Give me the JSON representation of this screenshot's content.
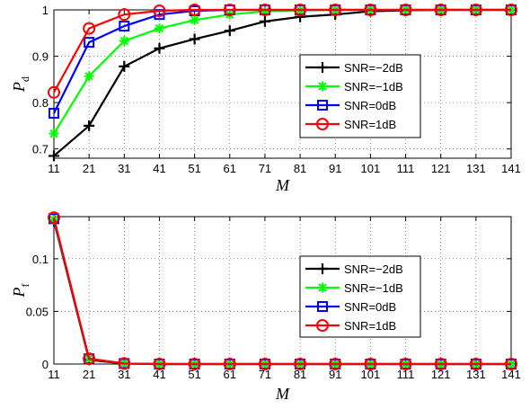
{
  "chart_data": [
    {
      "type": "line",
      "xlabel": "M",
      "ylabel": "P",
      "ylabel_sub": "d",
      "x": [
        11,
        21,
        31,
        41,
        51,
        61,
        71,
        81,
        91,
        101,
        111,
        121,
        131,
        141
      ],
      "xlim": [
        11,
        141
      ],
      "ylim": [
        0.68,
        1.0
      ],
      "yticks": [
        0.7,
        0.8,
        0.9,
        1.0
      ],
      "ytick_labels": [
        "0.7",
        "0.8",
        "0.9",
        "1"
      ],
      "grid": true,
      "legend_position": "right",
      "series": [
        {
          "name": "SNR=−2dB",
          "color": "#000000",
          "marker": "plus",
          "values": [
            0.685,
            0.75,
            0.878,
            0.917,
            0.937,
            0.955,
            0.975,
            0.985,
            0.99,
            0.997,
            0.999,
            1.0,
            1.0,
            1.0
          ]
        },
        {
          "name": "SNR=−1dB",
          "color": "#00ff00",
          "marker": "star",
          "values": [
            0.733,
            0.857,
            0.933,
            0.96,
            0.978,
            0.99,
            0.997,
            0.999,
            1.0,
            1.0,
            1.0,
            1.0,
            1.0,
            1.0
          ]
        },
        {
          "name": "SNR=0dB",
          "color": "#0000ff",
          "marker": "square",
          "values": [
            0.777,
            0.93,
            0.965,
            0.99,
            0.998,
            1.0,
            1.0,
            1.0,
            1.0,
            1.0,
            1.0,
            1.0,
            1.0,
            1.0
          ]
        },
        {
          "name": "SNR=1dB",
          "color": "#ff0000",
          "marker": "circle",
          "values": [
            0.822,
            0.96,
            0.99,
            0.998,
            1.0,
            1.0,
            1.0,
            1.0,
            1.0,
            1.0,
            1.0,
            1.0,
            1.0,
            1.0
          ]
        }
      ]
    },
    {
      "type": "line",
      "xlabel": "M",
      "ylabel": "P",
      "ylabel_sub": "f",
      "x": [
        11,
        21,
        31,
        41,
        51,
        61,
        71,
        81,
        91,
        101,
        111,
        121,
        131,
        141
      ],
      "xlim": [
        11,
        141
      ],
      "ylim": [
        0,
        0.14
      ],
      "yticks": [
        0,
        0.05,
        0.1
      ],
      "ytick_labels": [
        "0",
        "0.05",
        "0.1"
      ],
      "grid": true,
      "legend_position": "right",
      "series": [
        {
          "name": "SNR=−2dB",
          "color": "#000000",
          "marker": "plus",
          "values": [
            0.136,
            0.004,
            0.0005,
            0,
            0,
            0,
            0,
            0,
            0,
            0,
            0,
            0,
            0,
            0
          ]
        },
        {
          "name": "SNR=−1dB",
          "color": "#00ff00",
          "marker": "star",
          "values": [
            0.137,
            0.005,
            0.0005,
            0,
            0,
            0,
            0,
            0,
            0,
            0,
            0,
            0,
            0,
            0
          ]
        },
        {
          "name": "SNR=0dB",
          "color": "#0000ff",
          "marker": "square",
          "values": [
            0.138,
            0.005,
            0.0005,
            0,
            0,
            0,
            0,
            0,
            0,
            0,
            0,
            0,
            0,
            0
          ]
        },
        {
          "name": "SNR=1dB",
          "color": "#ff0000",
          "marker": "circle",
          "values": [
            0.139,
            0.005,
            0.0005,
            0,
            0,
            0,
            0,
            0,
            0,
            0,
            0,
            0,
            0,
            0
          ]
        }
      ]
    }
  ]
}
